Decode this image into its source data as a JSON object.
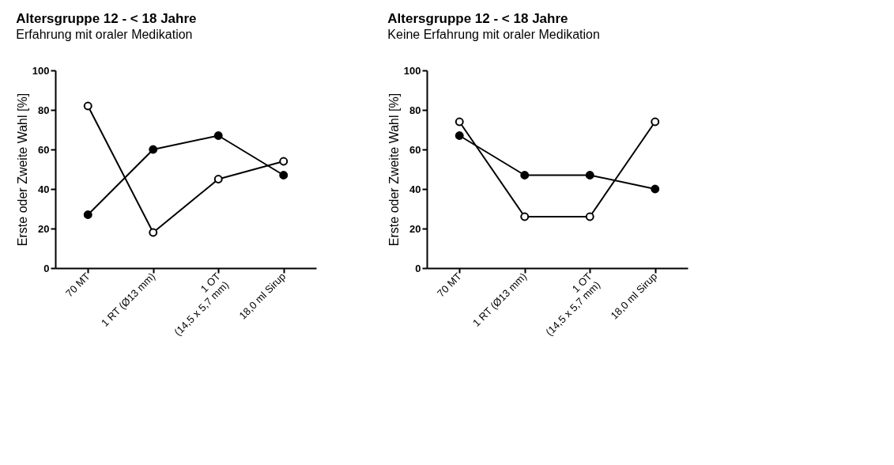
{
  "chart_data": [
    {
      "type": "line",
      "title": "Altersgruppe 12 - < 18 Jahre",
      "subtitle": "Erfahrung mit oraler Medikation",
      "ylabel": "Erste oder Zweite Wahl [%]",
      "categories": [
        "70 MT",
        "1 RT (Ø13 mm)",
        "1 OT\n(14,5 x 5,7 mm)",
        "18,0 ml Sirup"
      ],
      "series": [
        {
          "color": "#000000",
          "values": [
            82,
            18,
            45,
            54
          ]
        },
        {
          "color": "#000000",
          "values": [
            27,
            60,
            67,
            47
          ]
        }
      ],
      "ylim": [
        0,
        100
      ],
      "yticks": [
        0,
        20,
        40,
        60,
        80,
        100
      ],
      "marker": "circle",
      "line_style": "solid"
    },
    {
      "type": "line",
      "title": "Altersgruppe 12 - < 18 Jahre",
      "subtitle": "Keine Erfahrung mit oraler Medikation",
      "ylabel": "Erste oder Zweite Wahl [%]",
      "categories": [
        "70 MT",
        "1 RT (Ø13 mm)",
        "1 OT\n(14,5 x 5,7 mm)",
        "18,0 ml Sirup"
      ],
      "series": [
        {
          "color": "#000000",
          "values": [
            74,
            26,
            26,
            74
          ]
        },
        {
          "color": "#000000",
          "values": [
            67,
            47,
            47,
            40
          ]
        }
      ],
      "ylim": [
        0,
        100
      ],
      "yticks": [
        0,
        20,
        40,
        60,
        80,
        100
      ],
      "marker": "circle",
      "line_style": "solid"
    }
  ]
}
